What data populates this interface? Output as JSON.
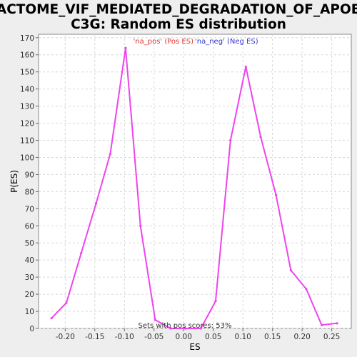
{
  "title_line1": "REACTOME_VIF_MEDIATED_DEGRADATION_OF_APOBEC",
  "title_line2": "C3G: Random ES distribution",
  "colors": {
    "background": "#eeeeee",
    "plot_bg": "#ffffff",
    "line": "#ee44ee",
    "pos_legend": "#dd3333",
    "neg_legend": "#3333cc",
    "grid": "#d8d8d8"
  },
  "chart_data": {
    "type": "line",
    "xlabel": "ES",
    "ylabel": "P(ES)",
    "xlim": [
      -0.245,
      0.283
    ],
    "ylim": [
      0,
      172
    ],
    "x_ticks": [
      -0.2,
      -0.15,
      -0.1,
      -0.05,
      0.0,
      0.05,
      0.1,
      0.15,
      0.2,
      0.25
    ],
    "x_tick_labels": [
      "-0.20",
      "-0.15",
      "-0.10",
      "-0.05",
      "0.00",
      "0.05",
      "0.10",
      "0.15",
      "0.20",
      "0.25"
    ],
    "y_ticks": [
      0,
      10,
      20,
      30,
      40,
      50,
      60,
      70,
      80,
      90,
      100,
      110,
      120,
      130,
      140,
      150,
      160,
      170
    ],
    "grid": true,
    "legend": {
      "placement": "top-center",
      "pos_label": "'na_pos' (Pos ES)",
      "neg_label": "'na_neg' (Neg ES)"
    },
    "annotation": "Sets with pos scores: 53%",
    "series": [
      {
        "x": [
          -0.223,
          -0.198,
          -0.173,
          -0.148,
          -0.124,
          -0.098,
          -0.073,
          -0.048,
          -0.022,
          0.003,
          0.029,
          0.054,
          0.079,
          0.105,
          0.13,
          0.156,
          0.181,
          0.207,
          0.233,
          0.259
        ],
        "y": [
          6,
          15,
          44,
          73,
          102,
          164,
          60,
          5,
          0,
          0,
          0,
          16,
          110,
          153,
          112,
          78,
          34,
          23,
          2,
          3
        ]
      }
    ]
  }
}
